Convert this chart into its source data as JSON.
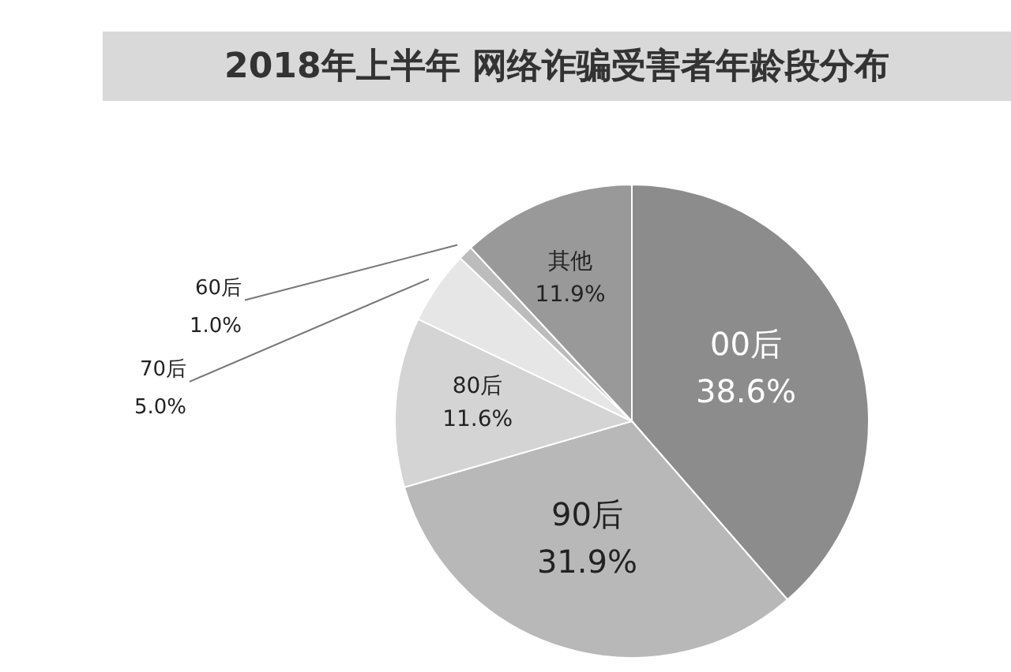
{
  "chart_data": {
    "type": "pie",
    "title": "2018年上半年 网络诈骗受害者年龄段分布",
    "categories": [
      "00后",
      "90后",
      "80后",
      "70后",
      "60后",
      "其他"
    ],
    "values": [
      38.6,
      31.9,
      11.6,
      5.0,
      1.0,
      11.9
    ],
    "colors": [
      "#8c8c8c",
      "#b8b8b8",
      "#d4d4d4",
      "#e6e6e6",
      "#bcbcbc",
      "#999999"
    ],
    "value_labels": [
      "38.6%",
      "31.9%",
      "11.6%",
      "5.0%",
      "1.0%",
      "11.9%"
    ]
  }
}
